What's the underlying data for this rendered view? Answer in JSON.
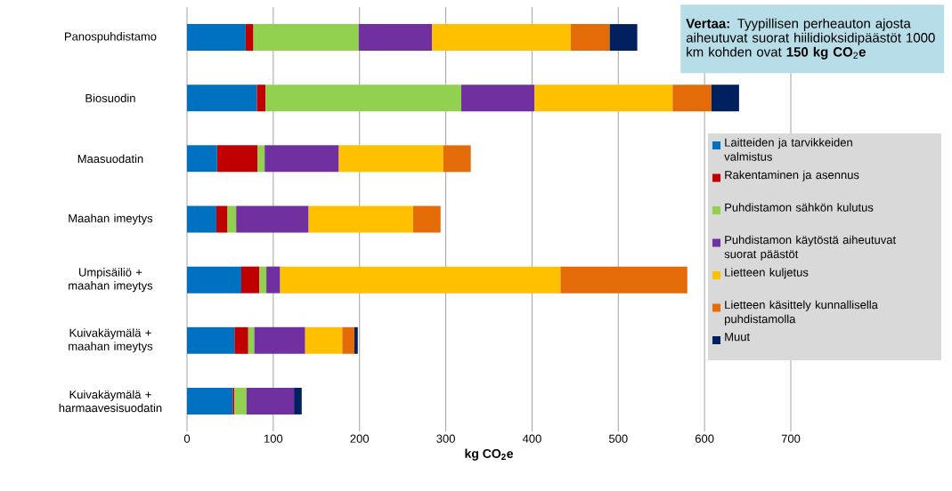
{
  "chart_data": {
    "type": "bar",
    "orientation": "horizontal",
    "stacked": true,
    "categories": [
      "Panospuhdistamo",
      "Biosuodin",
      "Maasuodatin",
      "Maahan imeytys",
      "Umpisäiliö + maahan imeytys",
      "Kuivakäymälä + maahan imeytys",
      "Kuivakäymälä + harmaavesisuodatin"
    ],
    "series": [
      {
        "name": "Laitteiden ja tarvikkeiden valmistus",
        "color": "#0070c0",
        "values": [
          68,
          81,
          35,
          34,
          63,
          55,
          53
        ]
      },
      {
        "name": "Rakentaminen ja asennus",
        "color": "#c00000",
        "values": [
          9,
          10,
          47,
          13,
          21,
          16,
          2
        ]
      },
      {
        "name": "Puhdistamon sähkön kulutus",
        "color": "#92d050",
        "values": [
          122,
          227,
          8,
          10,
          8,
          7,
          14
        ]
      },
      {
        "name": "Puhdistamon käytöstä aiheutuvat suorat päästöt",
        "color": "#7030a0",
        "values": [
          85,
          85,
          86,
          84,
          16,
          59,
          55
        ]
      },
      {
        "name": "Lietteen kuljetus",
        "color": "#ffc000",
        "values": [
          161,
          160,
          121,
          121,
          325,
          43,
          null
        ]
      },
      {
        "name": "Lietteen käsittely kunnallisella puhdistamolla",
        "color": "#e36c09",
        "values": [
          45,
          45,
          32,
          32,
          147,
          14,
          null
        ]
      },
      {
        "name": "Muut",
        "color": "#002060",
        "values": [
          32,
          32,
          null,
          null,
          null,
          4,
          9
        ]
      }
    ],
    "xlim": [
      0,
      700
    ],
    "xticks": [
      0,
      100,
      200,
      300,
      400,
      500,
      600,
      700
    ],
    "xlabel": "kg CO$_{2}$e",
    "grid": "x",
    "legend": "right",
    "annotations": [
      "**Vertaa:** Tyypillisen perheauton ajosta aiheutuvat suorat  hiilidioksidipäästöt 1000 km kohden ovat **150 kg CO**$_{2}$**e**"
    ]
  }
}
